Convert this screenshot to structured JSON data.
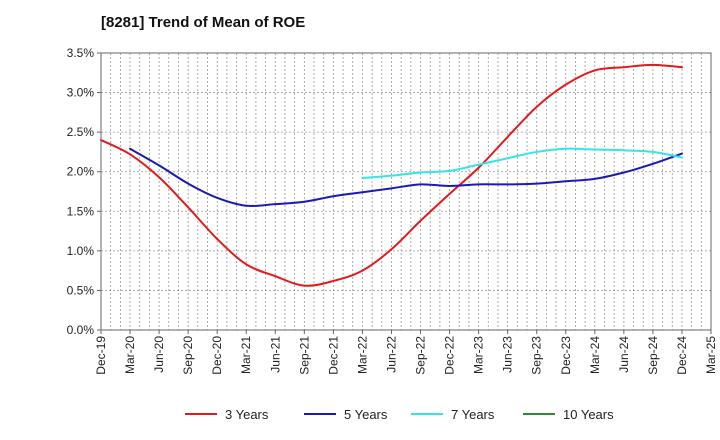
{
  "chart_data": {
    "type": "line",
    "title": "[8281]  Trend of Mean of ROE",
    "xlabel": "",
    "ylabel": "",
    "ylim": [
      0,
      3.5
    ],
    "yticks": [
      "0.0%",
      "0.5%",
      "1.0%",
      "1.5%",
      "2.0%",
      "2.5%",
      "3.0%",
      "3.5%"
    ],
    "categories": [
      "Dec-19",
      "Mar-20",
      "Jun-20",
      "Sep-20",
      "Dec-20",
      "Mar-21",
      "Jun-21",
      "Sep-21",
      "Dec-21",
      "Mar-22",
      "Jun-22",
      "Sep-22",
      "Dec-22",
      "Mar-23",
      "Jun-23",
      "Sep-23",
      "Dec-23",
      "Mar-24",
      "Jun-24",
      "Sep-24",
      "Dec-24",
      "Mar-25"
    ],
    "grid": true,
    "legend_position": "bottom",
    "series": [
      {
        "name": "3 Years",
        "color": "#e31a1c",
        "values": [
          2.4,
          2.22,
          1.93,
          1.55,
          1.15,
          0.83,
          0.68,
          0.56,
          0.62,
          0.75,
          1.02,
          1.38,
          1.72,
          2.05,
          2.44,
          2.82,
          3.1,
          3.28,
          3.32,
          3.35,
          3.32,
          null
        ]
      },
      {
        "name": "5 Years",
        "color": "#1a1ab8",
        "values": [
          null,
          2.29,
          2.08,
          1.85,
          1.67,
          1.57,
          1.59,
          1.62,
          1.69,
          1.74,
          1.79,
          1.84,
          1.82,
          1.84,
          1.84,
          1.85,
          1.88,
          1.91,
          1.99,
          2.1,
          2.23,
          null
        ]
      },
      {
        "name": "7 Years",
        "color": "#33e6e6",
        "values": [
          null,
          null,
          null,
          null,
          null,
          null,
          null,
          null,
          null,
          1.92,
          1.95,
          1.99,
          2.01,
          2.09,
          2.17,
          2.25,
          2.29,
          2.28,
          2.27,
          2.25,
          2.18,
          null
        ]
      },
      {
        "name": "10 Years",
        "color": "#2e8b2e",
        "values": [
          null,
          null,
          null,
          null,
          null,
          null,
          null,
          null,
          null,
          null,
          null,
          null,
          null,
          null,
          null,
          null,
          null,
          null,
          null,
          null,
          null,
          null
        ]
      }
    ]
  }
}
